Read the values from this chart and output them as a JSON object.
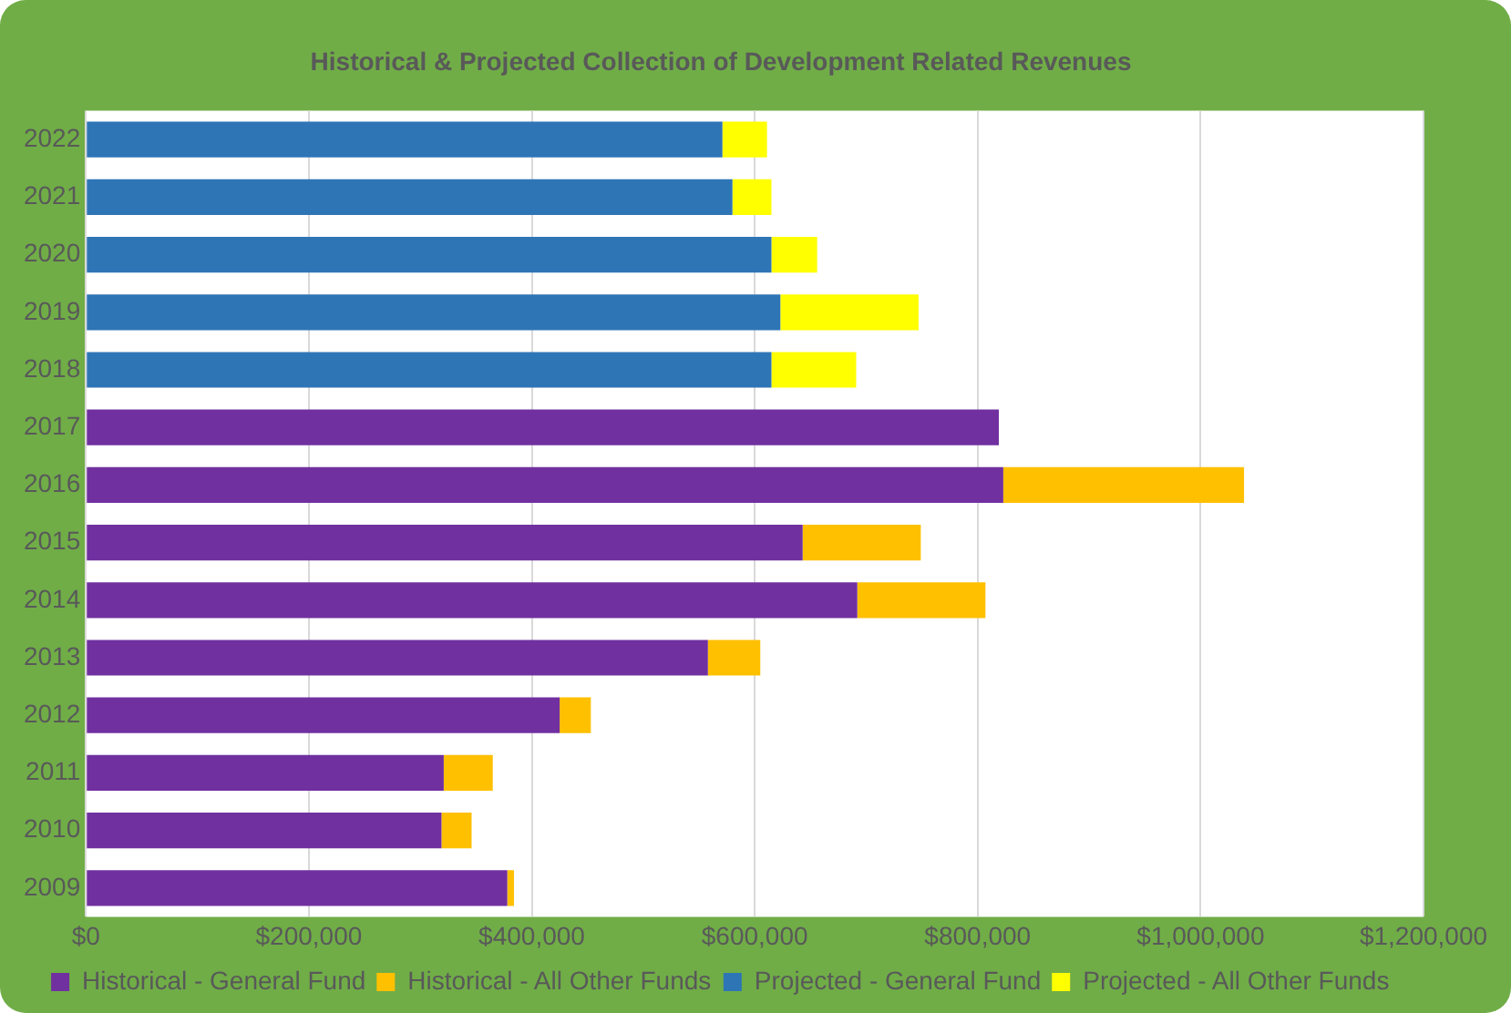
{
  "chart_data": {
    "type": "bar",
    "orientation": "horizontal",
    "stacked": true,
    "title": "Historical & Projected Collection of Development Related Revenues",
    "categories": [
      "2022",
      "2021",
      "2020",
      "2019",
      "2018",
      "2017",
      "2016",
      "2015",
      "2014",
      "2013",
      "2012",
      "2011",
      "2010",
      "2009"
    ],
    "series": [
      {
        "name": "Historical - General Fund",
        "color": "#7030a0",
        "values": [
          null,
          null,
          null,
          null,
          null,
          819000,
          823000,
          643000,
          692000,
          558000,
          425000,
          321000,
          319000,
          378000
        ]
      },
      {
        "name": "Historical - All Other Funds",
        "color": "#ffc000",
        "values": [
          null,
          null,
          null,
          null,
          null,
          null,
          216000,
          106000,
          115000,
          47000,
          28000,
          44000,
          27000,
          6000
        ]
      },
      {
        "name": "Projected - General Fund",
        "color": "#2e75b6",
        "values": [
          571000,
          580000,
          615000,
          623000,
          615000,
          null,
          null,
          null,
          null,
          null,
          null,
          null,
          null,
          null
        ]
      },
      {
        "name": "Projected - All Other Funds",
        "color": "#ffff00",
        "values": [
          40000,
          35000,
          41000,
          124000,
          76000,
          null,
          null,
          null,
          null,
          null,
          null,
          null,
          null,
          null
        ]
      }
    ],
    "xlim": [
      0,
      1200000
    ],
    "xticks": [
      {
        "value": 0,
        "label": "$0"
      },
      {
        "value": 200000,
        "label": "$200,000"
      },
      {
        "value": 400000,
        "label": "$400,000"
      },
      {
        "value": 600000,
        "label": "$600,000"
      },
      {
        "value": 800000,
        "label": "$800,000"
      },
      {
        "value": 1000000,
        "label": "$1,000,000"
      },
      {
        "value": 1200000,
        "label": "$1,200,000"
      }
    ],
    "grid": "x",
    "legend": "bottom"
  }
}
